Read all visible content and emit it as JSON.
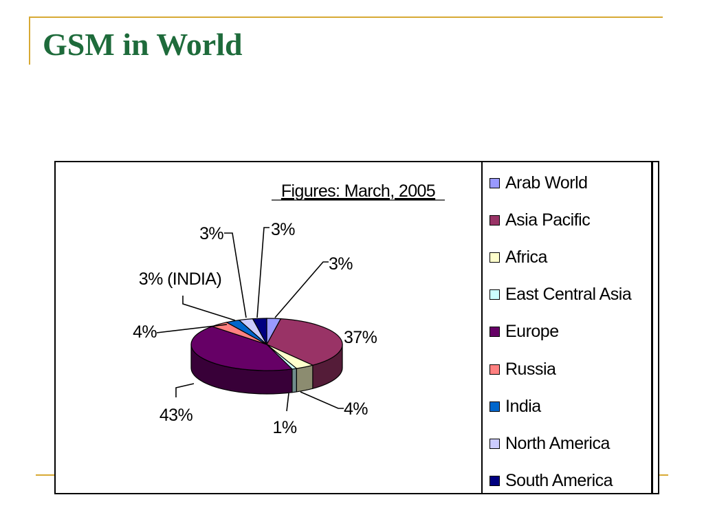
{
  "slide": {
    "title": "GSM in World"
  },
  "chart_data": {
    "type": "pie",
    "subtitle": "Figures: March, 2005",
    "slices": [
      {
        "name": "Arab World",
        "value": 3,
        "label": "3%",
        "color": "#9999ff"
      },
      {
        "name": "Asia Pacific",
        "value": 37,
        "label": "37%",
        "color": "#993366"
      },
      {
        "name": "Africa",
        "value": 4,
        "label": "4%",
        "color": "#ffffcc"
      },
      {
        "name": "East Central Asia",
        "value": 1,
        "label": "1%",
        "color": "#ccffff"
      },
      {
        "name": "Europe",
        "value": 43,
        "label": "43%",
        "color": "#660066"
      },
      {
        "name": "Russia",
        "value": 4,
        "label": "4%",
        "color": "#ff8080"
      },
      {
        "name": "India",
        "value": 3,
        "label": "3% (INDIA)",
        "color": "#0066cc"
      },
      {
        "name": "North America",
        "value": 3,
        "label": "3%",
        "color": "#ccccff"
      },
      {
        "name": "South America",
        "value": 3,
        "label": "3%",
        "color": "#000080"
      }
    ],
    "legend_position": "right",
    "style": "3d-pie"
  }
}
